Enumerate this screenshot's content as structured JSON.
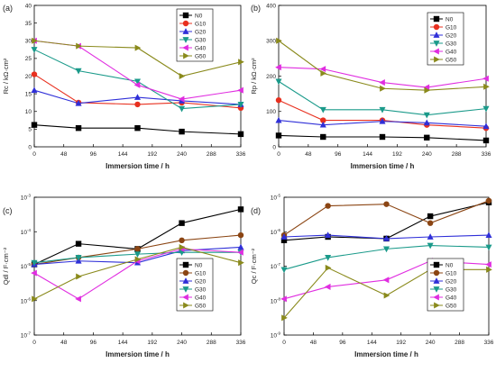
{
  "colors": {
    "N0": "#000000",
    "G10": "#e8301f",
    "G20": "#2f2fd8",
    "G30": "#1a9a8a",
    "G40": "#e02de0",
    "G50": "#8a8a1c",
    "G10_brown": "#8b4513"
  },
  "chart_data": [
    {
      "panel": "a",
      "label": "(a)",
      "type": "line",
      "xlabel": "Immersion time / h",
      "ylabel": "Rc / kΩ·cm²",
      "xlim": [
        0,
        336
      ],
      "ylim": [
        0,
        40
      ],
      "xticks": [
        "0",
        "48",
        "96",
        "144",
        "192",
        "240",
        "288",
        "336"
      ],
      "yticks": [
        "0",
        "5",
        "10",
        "15",
        "20",
        "25",
        "30",
        "35",
        "40"
      ],
      "yscale": "linear",
      "legend_position": "top-right",
      "x": [
        0,
        72,
        168,
        240,
        336
      ],
      "series": [
        {
          "name": "N0",
          "marker": "square",
          "values": [
            6.2,
            5.3,
            5.3,
            4.3,
            3.6
          ]
        },
        {
          "name": "G10",
          "marker": "circle",
          "values": [
            20.5,
            12.5,
            12.0,
            12.5,
            11.0
          ]
        },
        {
          "name": "G20",
          "marker": "triangle-up",
          "values": [
            16.0,
            12.3,
            14.0,
            13.0,
            12.0
          ]
        },
        {
          "name": "G30",
          "marker": "triangle-down",
          "values": [
            27.5,
            21.5,
            18.5,
            10.8,
            12.0
          ]
        },
        {
          "name": "G40",
          "marker": "triangle-left",
          "values": [
            30.0,
            28.5,
            17.5,
            13.5,
            16.0
          ]
        },
        {
          "name": "G50",
          "marker": "triangle-right",
          "values": [
            30.0,
            28.5,
            28.0,
            20.0,
            24.0
          ]
        }
      ]
    },
    {
      "panel": "b",
      "label": "(b)",
      "type": "line",
      "xlabel": "Immersion time / h",
      "ylabel": "Rp / kΩ·cm²",
      "xlim": [
        0,
        336
      ],
      "ylim": [
        0,
        400
      ],
      "xticks": [
        "0",
        "48",
        "96",
        "144",
        "192",
        "240",
        "288",
        "336"
      ],
      "yticks": [
        "0",
        "100",
        "200",
        "300",
        "400"
      ],
      "yscale": "linear",
      "legend_position": "top-right",
      "x": [
        0,
        72,
        168,
        240,
        336
      ],
      "series": [
        {
          "name": "N0",
          "marker": "square",
          "values": [
            32,
            28,
            28,
            26,
            18
          ]
        },
        {
          "name": "G10",
          "marker": "circle",
          "values": [
            132,
            75,
            75,
            62,
            53
          ]
        },
        {
          "name": "G20",
          "marker": "triangle-up",
          "values": [
            75,
            62,
            72,
            68,
            58
          ]
        },
        {
          "name": "G30",
          "marker": "triangle-down",
          "values": [
            185,
            105,
            105,
            90,
            108
          ]
        },
        {
          "name": "G40",
          "marker": "triangle-left",
          "values": [
            225,
            220,
            182,
            168,
            193
          ]
        },
        {
          "name": "G50",
          "marker": "triangle-right",
          "values": [
            300,
            208,
            165,
            160,
            170
          ]
        }
      ]
    },
    {
      "panel": "c",
      "label": "(c)",
      "type": "line",
      "xlabel": "Immersion time / h",
      "ylabel": "Qdl / F·cm⁻²",
      "xlim": [
        0,
        336
      ],
      "ylim_log10": [
        -7,
        -3
      ],
      "xticks": [
        "0",
        "48",
        "96",
        "144",
        "192",
        "240",
        "288",
        "336"
      ],
      "ytick_exponents": [
        "-7",
        "-6",
        "-5",
        "-4",
        "-3"
      ],
      "ytick_base": "10",
      "yscale": "log",
      "legend_position": "bottom-right",
      "x": [
        0,
        72,
        168,
        240,
        336
      ],
      "series": [
        {
          "name": "N0",
          "color_key": "N0",
          "marker": "square",
          "values_log10": [
            -4.95,
            -4.35,
            -4.5,
            -3.75,
            -3.35
          ]
        },
        {
          "name": "G10",
          "color_key": "G10_brown",
          "marker": "circle",
          "values_log10": [
            -4.95,
            -4.75,
            -4.5,
            -4.25,
            -4.1
          ]
        },
        {
          "name": "G20",
          "color_key": "G20",
          "marker": "triangle-up",
          "values_log10": [
            -4.95,
            -4.85,
            -4.9,
            -4.55,
            -4.45
          ]
        },
        {
          "name": "G30",
          "color_key": "G30",
          "marker": "triangle-down",
          "values_log10": [
            -4.9,
            -4.75,
            -4.65,
            -4.6,
            -4.6
          ]
        },
        {
          "name": "G40",
          "color_key": "G40",
          "marker": "triangle-left",
          "values_log10": [
            -5.2,
            -5.95,
            -4.85,
            -4.5,
            -4.6
          ]
        },
        {
          "name": "G50",
          "color_key": "G50",
          "marker": "triangle-right",
          "values_log10": [
            -5.95,
            -5.3,
            -4.8,
            -4.45,
            -4.9
          ]
        }
      ]
    },
    {
      "panel": "d",
      "label": "(d)",
      "type": "line",
      "xlabel": "Immersion time / h",
      "ylabel": "Qc / F·cm⁻²",
      "xlim": [
        0,
        336
      ],
      "ylim_log10": [
        -9,
        -5
      ],
      "xticks": [
        "0",
        "48",
        "96",
        "144",
        "192",
        "240",
        "288",
        "336"
      ],
      "ytick_exponents": [
        "-9",
        "-8",
        "-7",
        "-6",
        "-5"
      ],
      "ytick_base": "10",
      "yscale": "log",
      "legend_position": "bottom-right",
      "x": [
        0,
        72,
        168,
        240,
        336
      ],
      "series": [
        {
          "name": "N0",
          "color_key": "N0",
          "marker": "square",
          "values_log10": [
            -6.25,
            -6.15,
            -6.2,
            -5.55,
            -5.15
          ]
        },
        {
          "name": "G10",
          "color_key": "G10_brown",
          "marker": "circle",
          "values_log10": [
            -6.1,
            -5.25,
            -5.2,
            -5.75,
            -5.1
          ]
        },
        {
          "name": "G20",
          "color_key": "G20",
          "marker": "triangle-up",
          "values_log10": [
            -6.15,
            -6.1,
            -6.2,
            -6.15,
            -6.1
          ]
        },
        {
          "name": "G30",
          "color_key": "G30",
          "marker": "triangle-down",
          "values_log10": [
            -7.1,
            -6.75,
            -6.5,
            -6.4,
            -6.45
          ]
        },
        {
          "name": "G40",
          "color_key": "G40",
          "marker": "triangle-left",
          "values_log10": [
            -7.95,
            -7.6,
            -7.4,
            -6.85,
            -6.95
          ]
        },
        {
          "name": "G50",
          "color_key": "G50",
          "marker": "triangle-right",
          "values_log10": [
            -8.5,
            -7.05,
            -7.85,
            -7.1,
            -7.1
          ]
        }
      ]
    }
  ]
}
